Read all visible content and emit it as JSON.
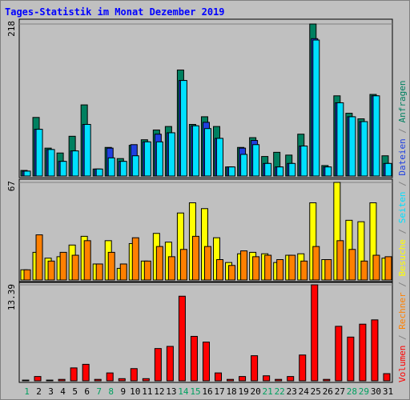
{
  "chart_data": {
    "type": "bar",
    "title": "Tages-Statistik im Monat Dezember 2019",
    "categories": [
      "1",
      "2",
      "3",
      "4",
      "5",
      "6",
      "7",
      "8",
      "9",
      "10",
      "11",
      "12",
      "13",
      "14",
      "15",
      "16",
      "17",
      "18",
      "19",
      "20",
      "21",
      "22",
      "23",
      "24",
      "25",
      "26",
      "27",
      "28",
      "29",
      "30",
      "31"
    ],
    "category_color": "#008040",
    "highlight_categories": [
      "1",
      "7",
      "8",
      "14",
      "15",
      "21",
      "22",
      "28",
      "29"
    ],
    "highlight_color": "#00a060",
    "separator": "/",
    "separator_color": "#808080",
    "panels": [
      {
        "ylim": [
          0,
          218
        ],
        "yticks": [
          218
        ],
        "series": [
          {
            "name": "Anfragen",
            "color": "#008060",
            "values": [
              8,
              84,
              40,
              33,
              57,
              102,
              10,
              41,
              25,
              44,
              52,
              66,
              71,
              152,
              74,
              85,
              71,
              13,
              41,
              55,
              28,
              34,
              30,
              60,
              218,
              15,
              115,
              90,
              82,
              117,
              29
            ]
          },
          {
            "name": "Dateien",
            "color": "#2040e0",
            "values": [
              7,
              67,
              38,
              21,
              36,
              74,
              10,
              40,
              21,
              45,
              49,
              60,
              62,
              137,
              72,
              77,
              54,
              13,
              40,
              51,
              18,
              13,
              18,
              43,
              197,
              13,
              105,
              85,
              78,
              115,
              18
            ]
          },
          {
            "name": "Seiten",
            "color": "#00e0ff",
            "values": [
              7,
              67,
              38,
              21,
              36,
              74,
              10,
              26,
              21,
              29,
              49,
              49,
              62,
              137,
              72,
              68,
              54,
              13,
              31,
              45,
              18,
              13,
              18,
              43,
              195,
              13,
              105,
              85,
              78,
              115,
              18
            ]
          }
        ]
      },
      {
        "ylim": [
          0,
          67
        ],
        "yticks": [
          67
        ],
        "series": [
          {
            "name": "Besuche",
            "color": "#ffff00",
            "values": [
              7,
              19,
              15,
              16,
              24,
              30,
              11,
              27,
              8,
              25,
              13,
              32,
              26,
              46,
              53,
              49,
              29,
              12,
              18,
              19,
              18,
              12,
              17,
              18,
              53,
              14,
              67,
              41,
              40,
              53,
              15
            ]
          },
          {
            "name": "Rechner",
            "color": "#ff8000",
            "values": [
              7,
              31,
              13,
              19,
              17,
              27,
              11,
              19,
              11,
              29,
              13,
              23,
              16,
              21,
              30,
              23,
              14,
              10,
              20,
              16,
              17,
              14,
              17,
              13,
              23,
              14,
              27,
              21,
              13,
              17,
              16
            ]
          }
        ]
      },
      {
        "ylim": [
          0,
          13.39
        ],
        "yticks": [
          13.39
        ],
        "series": [
          {
            "name": "Volumen",
            "color": "#ff0000",
            "values": [
              0.1,
              0.6,
              0.1,
              0.2,
              1.8,
              2.3,
              0.2,
              1.1,
              0.3,
              1.7,
              0.3,
              4.5,
              4.8,
              11.8,
              6.2,
              5.4,
              1.1,
              0.2,
              0.6,
              3.5,
              0.7,
              0.2,
              0.6,
              3.6,
              13.39,
              0.2,
              7.6,
              6.1,
              7.9,
              8.5,
              1.0
            ]
          }
        ]
      }
    ]
  }
}
